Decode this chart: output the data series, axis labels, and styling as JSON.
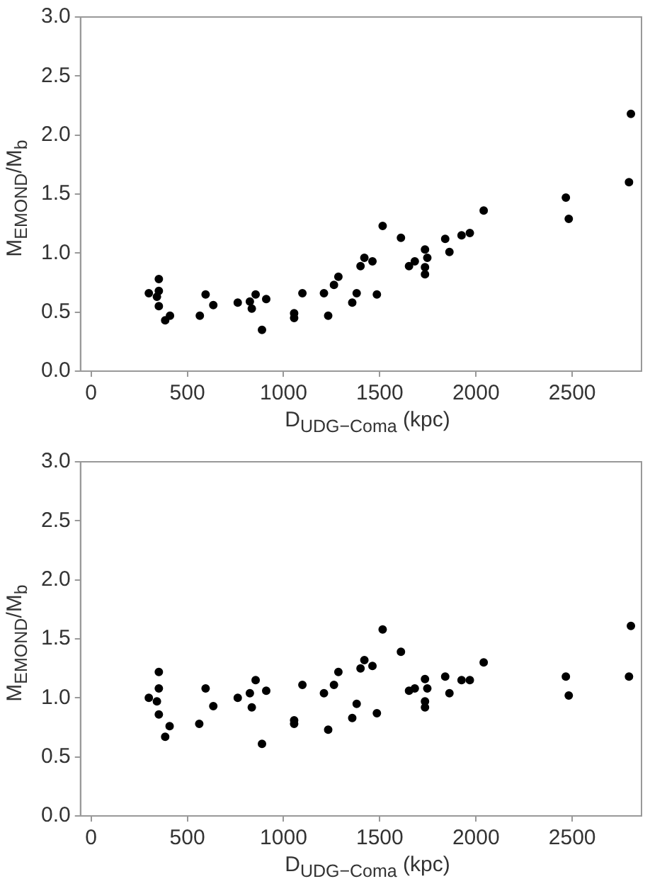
{
  "chart_data": [
    {
      "type": "scatter",
      "xlabel": "D$_{UDG−Coma}$ (kpc)",
      "ylabel": "M$_{EMOND}$/M$_{b}$",
      "xlim": [
        -55,
        2860
      ],
      "ylim": [
        0,
        3
      ],
      "xticks": [
        0,
        500,
        1000,
        1500,
        2000,
        2500
      ],
      "yticks": [
        {
          "value": 0,
          "label": "0.0"
        },
        0.5,
        {
          "value": 1,
          "label": "1.0"
        },
        1.5,
        {
          "value": 2,
          "label": "2.0"
        },
        2.5,
        {
          "value": 3,
          "label": "3.0"
        }
      ],
      "marker": "circle",
      "color": "#000000",
      "x": [
        300,
        342,
        352,
        352,
        352,
        385,
        410,
        565,
        595,
        635,
        762,
        825,
        835,
        855,
        888,
        910,
        1055,
        1055,
        1098,
        1210,
        1232,
        1262,
        1285,
        1357,
        1380,
        1400,
        1420,
        1462,
        1485,
        1515,
        1610,
        1652,
        1682,
        1735,
        1735,
        1735,
        1747,
        1840,
        1862,
        1925,
        1968,
        2040,
        2467,
        2482,
        2795,
        2805
      ],
      "values": [
        0.66,
        0.63,
        0.78,
        0.68,
        0.55,
        0.43,
        0.47,
        0.47,
        0.65,
        0.56,
        0.58,
        0.59,
        0.53,
        0.65,
        0.35,
        0.61,
        0.49,
        0.45,
        0.66,
        0.66,
        0.47,
        0.73,
        0.8,
        0.58,
        0.66,
        0.89,
        0.96,
        0.93,
        0.65,
        1.23,
        1.13,
        0.89,
        0.93,
        1.03,
        0.88,
        0.82,
        0.96,
        1.12,
        1.01,
        1.15,
        1.17,
        1.36,
        1.47,
        1.29,
        1.6,
        2.18
      ]
    },
    {
      "type": "scatter",
      "xlabel": "D$_{UDG−Coma}$ (kpc)",
      "ylabel": "M$_{EMOND}$/M$_{b}$",
      "xlim": [
        -55,
        2860
      ],
      "ylim": [
        0,
        3
      ],
      "xticks": [
        0,
        500,
        1000,
        1500,
        2000,
        2500
      ],
      "yticks": [
        {
          "value": 0,
          "label": "0.0"
        },
        0.5,
        {
          "value": 1,
          "label": "1.0"
        },
        1.5,
        {
          "value": 2,
          "label": "2.0"
        },
        2.5,
        {
          "value": 3,
          "label": "3.0"
        }
      ],
      "marker": "circle",
      "color": "#000000",
      "x": [
        300,
        342,
        352,
        352,
        352,
        385,
        408,
        562,
        595,
        635,
        762,
        825,
        835,
        855,
        888,
        910,
        1055,
        1055,
        1098,
        1210,
        1232,
        1262,
        1285,
        1357,
        1380,
        1400,
        1420,
        1462,
        1485,
        1515,
        1610,
        1652,
        1682,
        1735,
        1735,
        1735,
        1747,
        1840,
        1862,
        1925,
        1968,
        2040,
        2467,
        2482,
        2795,
        2805
      ],
      "values": [
        1.0,
        0.97,
        1.22,
        1.08,
        0.86,
        0.67,
        0.76,
        0.78,
        1.08,
        0.93,
        1.0,
        1.04,
        0.92,
        1.15,
        0.61,
        1.06,
        0.81,
        0.78,
        1.11,
        1.04,
        0.73,
        1.11,
        1.22,
        0.83,
        0.95,
        1.25,
        1.32,
        1.27,
        0.87,
        1.58,
        1.39,
        1.06,
        1.08,
        1.16,
        0.97,
        0.92,
        1.08,
        1.18,
        1.04,
        1.15,
        1.15,
        1.3,
        1.18,
        1.02,
        1.18,
        1.61
      ]
    }
  ]
}
